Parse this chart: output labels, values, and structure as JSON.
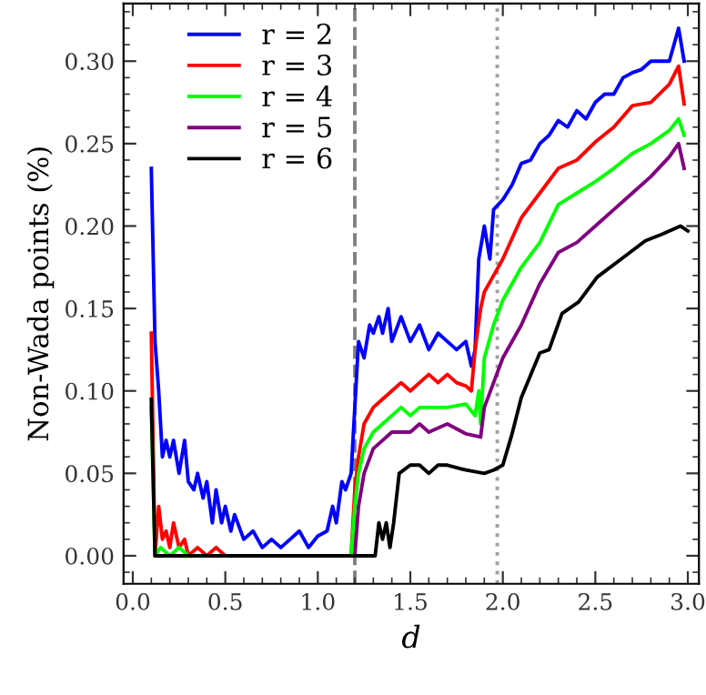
{
  "chart_data": {
    "type": "line",
    "xlabel": "d",
    "ylabel": "Non-Wada points (%)",
    "xlim": [
      -0.05,
      3.06
    ],
    "ylim": [
      -0.017,
      0.335
    ],
    "xticks": [
      {
        "value": 0,
        "label": "0.0"
      },
      {
        "value": 0.5,
        "label": "0.5"
      },
      {
        "value": 1,
        "label": "1.0"
      },
      {
        "value": 1.5,
        "label": "1.5"
      },
      {
        "value": 2,
        "label": "2.0"
      },
      {
        "value": 2.5,
        "label": "2.5"
      },
      {
        "value": 3,
        "label": "3.0"
      }
    ],
    "yticks": [
      {
        "value": 0,
        "label": "0.00"
      },
      {
        "value": 0.05,
        "label": "0.05"
      },
      {
        "value": 0.1,
        "label": "0.10"
      },
      {
        "value": 0.15,
        "label": "0.15"
      },
      {
        "value": 0.2,
        "label": "0.20"
      },
      {
        "value": 0.25,
        "label": "0.25"
      },
      {
        "value": 0.3,
        "label": "0.30"
      }
    ],
    "grid": false,
    "legend": "top left",
    "marker": "none",
    "line_style": "solid",
    "ref_lines": [
      {
        "axis": "x",
        "value": 1.2,
        "color": "#808080",
        "line_style": "dashed"
      },
      {
        "axis": "x",
        "value": 1.97,
        "color": "#a0a0a0",
        "line_style": "dotted"
      }
    ],
    "series": [
      {
        "name": "r = 2",
        "color": "#0000ff",
        "x": [
          0.1,
          0.12,
          0.14,
          0.16,
          0.18,
          0.2,
          0.22,
          0.25,
          0.28,
          0.3,
          0.33,
          0.35,
          0.38,
          0.4,
          0.43,
          0.45,
          0.48,
          0.5,
          0.53,
          0.55,
          0.6,
          0.65,
          0.7,
          0.75,
          0.8,
          0.85,
          0.9,
          0.95,
          1.0,
          1.05,
          1.08,
          1.1,
          1.13,
          1.15,
          1.18,
          1.2,
          1.22,
          1.25,
          1.28,
          1.3,
          1.33,
          1.35,
          1.38,
          1.4,
          1.45,
          1.5,
          1.55,
          1.6,
          1.65,
          1.7,
          1.75,
          1.8,
          1.83,
          1.85,
          1.87,
          1.9,
          1.93,
          1.95,
          2.0,
          2.05,
          2.1,
          2.15,
          2.2,
          2.25,
          2.3,
          2.35,
          2.4,
          2.45,
          2.5,
          2.55,
          2.6,
          2.65,
          2.7,
          2.75,
          2.8,
          2.85,
          2.9,
          2.95,
          2.98
        ],
        "values": [
          0.235,
          0.13,
          0.1,
          0.06,
          0.07,
          0.06,
          0.07,
          0.05,
          0.07,
          0.045,
          0.04,
          0.05,
          0.035,
          0.045,
          0.02,
          0.04,
          0.02,
          0.03,
          0.015,
          0.025,
          0.01,
          0.015,
          0.005,
          0.01,
          0.005,
          0.01,
          0.015,
          0.005,
          0.012,
          0.015,
          0.03,
          0.02,
          0.045,
          0.04,
          0.05,
          0.09,
          0.13,
          0.12,
          0.14,
          0.135,
          0.145,
          0.135,
          0.15,
          0.13,
          0.145,
          0.13,
          0.14,
          0.125,
          0.135,
          0.13,
          0.125,
          0.13,
          0.115,
          0.125,
          0.18,
          0.2,
          0.18,
          0.21,
          0.216,
          0.225,
          0.238,
          0.24,
          0.25,
          0.255,
          0.264,
          0.26,
          0.27,
          0.265,
          0.275,
          0.28,
          0.28,
          0.29,
          0.293,
          0.295,
          0.3,
          0.3,
          0.3,
          0.32,
          0.3
        ]
      },
      {
        "name": "r = 3",
        "color": "#ff0000",
        "x": [
          0.1,
          0.12,
          0.14,
          0.16,
          0.18,
          0.2,
          0.22,
          0.25,
          0.28,
          0.3,
          0.35,
          0.4,
          0.45,
          0.5,
          0.6,
          0.8,
          1.0,
          1.18,
          1.2,
          1.22,
          1.25,
          1.3,
          1.35,
          1.4,
          1.45,
          1.5,
          1.55,
          1.6,
          1.65,
          1.7,
          1.75,
          1.8,
          1.83,
          1.85,
          1.88,
          1.9,
          1.95,
          2.0,
          2.1,
          2.2,
          2.3,
          2.4,
          2.5,
          2.6,
          2.7,
          2.8,
          2.9,
          2.95,
          2.98
        ],
        "values": [
          0.135,
          0.0,
          0.03,
          0.01,
          0.015,
          0.005,
          0.02,
          0.005,
          0.01,
          0.0,
          0.005,
          0.0,
          0.005,
          0.0,
          0.0,
          0.0,
          0.0,
          0.0,
          0.04,
          0.06,
          0.08,
          0.09,
          0.095,
          0.1,
          0.105,
          0.1,
          0.105,
          0.11,
          0.105,
          0.11,
          0.105,
          0.103,
          0.1,
          0.125,
          0.15,
          0.16,
          0.17,
          0.18,
          0.205,
          0.22,
          0.235,
          0.24,
          0.251,
          0.26,
          0.273,
          0.275,
          0.286,
          0.297,
          0.274
        ]
      },
      {
        "name": "r = 4",
        "color": "#00ff00",
        "x": [
          0.1,
          0.12,
          0.15,
          0.2,
          0.25,
          0.3,
          0.5,
          1.0,
          1.18,
          1.2,
          1.22,
          1.25,
          1.3,
          1.35,
          1.4,
          1.45,
          1.5,
          1.55,
          1.6,
          1.7,
          1.8,
          1.85,
          1.87,
          1.88,
          1.9,
          1.95,
          2.0,
          2.1,
          2.2,
          2.3,
          2.4,
          2.5,
          2.6,
          2.7,
          2.8,
          2.9,
          2.95,
          2.98
        ],
        "values": [
          0.09,
          0.0,
          0.005,
          0.0,
          0.005,
          0.0,
          0.0,
          0.0,
          0.0,
          0.03,
          0.05,
          0.065,
          0.075,
          0.08,
          0.085,
          0.09,
          0.085,
          0.09,
          0.09,
          0.09,
          0.092,
          0.085,
          0.1,
          0.08,
          0.12,
          0.14,
          0.155,
          0.175,
          0.19,
          0.213,
          0.22,
          0.227,
          0.235,
          0.244,
          0.25,
          0.258,
          0.265,
          0.255
        ]
      },
      {
        "name": "r = 5",
        "color": "#800080",
        "x": [
          1.2,
          1.22,
          1.25,
          1.3,
          1.35,
          1.4,
          1.5,
          1.55,
          1.6,
          1.7,
          1.8,
          1.88,
          1.9,
          1.95,
          2.0,
          2.1,
          2.2,
          2.3,
          2.4,
          2.5,
          2.6,
          2.7,
          2.8,
          2.9,
          2.95,
          2.98
        ],
        "values": [
          0.0,
          0.03,
          0.05,
          0.065,
          0.07,
          0.075,
          0.075,
          0.08,
          0.075,
          0.08,
          0.074,
          0.072,
          0.09,
          0.105,
          0.12,
          0.14,
          0.165,
          0.184,
          0.19,
          0.2,
          0.21,
          0.22,
          0.23,
          0.242,
          0.25,
          0.235
        ]
      },
      {
        "name": "r = 6",
        "color": "#000000",
        "x": [
          0.1,
          0.12,
          0.5,
          1.0,
          1.31,
          1.33,
          1.35,
          1.37,
          1.39,
          1.41,
          1.44,
          1.5,
          1.55,
          1.6,
          1.65,
          1.7,
          1.8,
          1.9,
          1.95,
          2.0,
          2.05,
          2.1,
          2.2,
          2.25,
          2.32,
          2.41,
          2.51,
          2.64,
          2.77,
          2.86,
          2.96,
          3.0
        ],
        "values": [
          0.095,
          0.0,
          0.0,
          0.0,
          0.0,
          0.02,
          0.01,
          0.02,
          0.005,
          0.02,
          0.05,
          0.055,
          0.055,
          0.05,
          0.055,
          0.055,
          0.052,
          0.05,
          0.052,
          0.055,
          0.074,
          0.096,
          0.123,
          0.125,
          0.147,
          0.154,
          0.169,
          0.18,
          0.191,
          0.195,
          0.2,
          0.197
        ]
      }
    ]
  }
}
